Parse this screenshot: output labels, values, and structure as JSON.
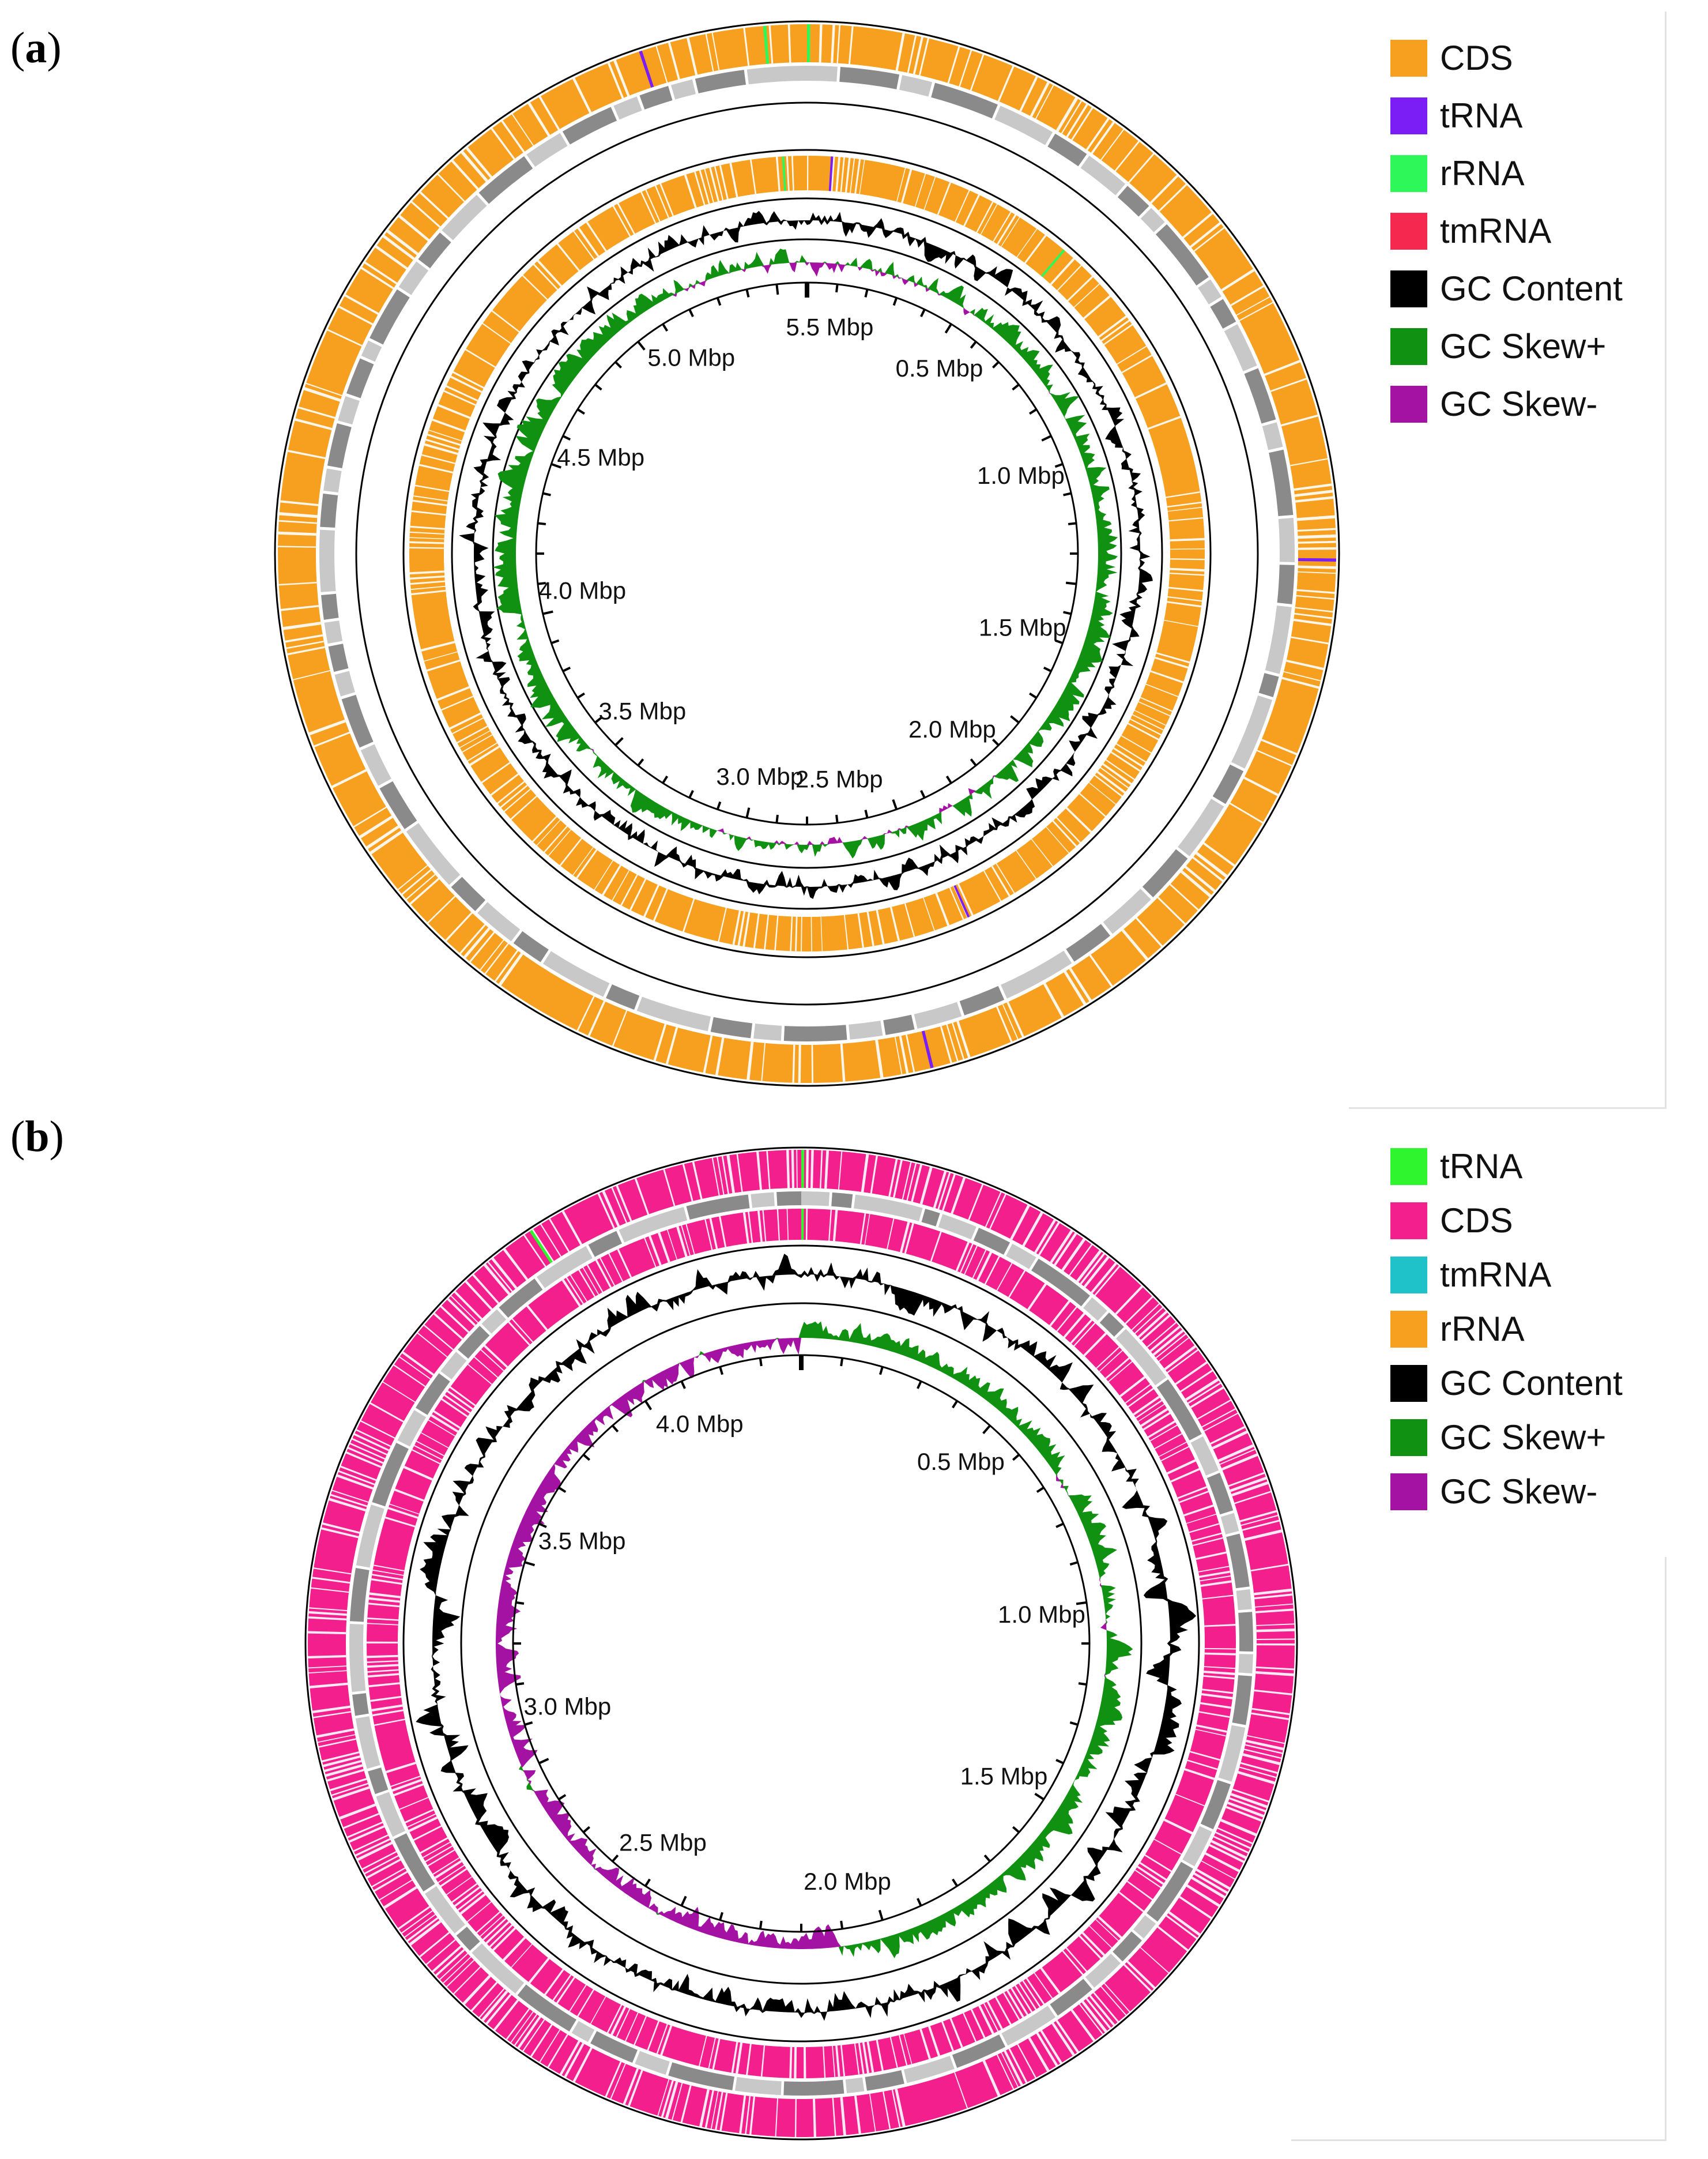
{
  "panels": [
    {
      "label": "a",
      "tick_labels": [
        "5.5 Mbp",
        "0.5 Mbp",
        "1.0 Mbp",
        "1.5 Mbp",
        "2.0 Mbp",
        "2.5 Mbp",
        "3.0 Mbp",
        "3.5 Mbp",
        "4.0 Mbp",
        "4.5 Mbp",
        "5.0 Mbp"
      ],
      "legend": [
        {
          "label": "CDS",
          "color": "#f7a01f"
        },
        {
          "label": "tRNA",
          "color": "#7a1ef5"
        },
        {
          "label": "rRNA",
          "color": "#2ef75a"
        },
        {
          "label": "tmRNA",
          "color": "#f5294f"
        },
        {
          "label": "GC Content",
          "color": "#000000"
        },
        {
          "label": "GC Skew+",
          "color": "#119111"
        },
        {
          "label": "GC Skew-",
          "color": "#a312a3"
        }
      ]
    },
    {
      "label": "b",
      "tick_labels": [
        "4.0 Mbp",
        "0.5 Mbp",
        "1.0 Mbp",
        "1.5 Mbp",
        "2.0 Mbp",
        "2.5 Mbp",
        "3.0 Mbp",
        "3.5 Mbp"
      ],
      "legend": [
        {
          "label": "tRNA",
          "color": "#2ef52e"
        },
        {
          "label": "CDS",
          "color": "#f21f8c"
        },
        {
          "label": "tmRNA",
          "color": "#1fc2c9"
        },
        {
          "label": "rRNA",
          "color": "#f7a01f"
        },
        {
          "label": "GC Content",
          "color": "#000000"
        },
        {
          "label": "GC Skew+",
          "color": "#119111"
        },
        {
          "label": "GC Skew-",
          "color": "#a312a3"
        }
      ]
    }
  ]
}
